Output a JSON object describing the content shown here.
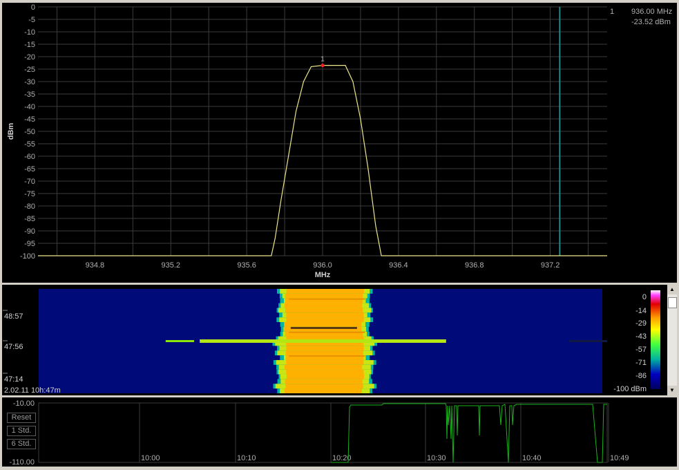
{
  "spectrum": {
    "ylabel": "dBm",
    "xlabel": "MHz",
    "y_ticks": [
      "0",
      "-5",
      "-10",
      "-15",
      "-20",
      "-25",
      "-30",
      "-35",
      "-40",
      "-45",
      "-50",
      "-55",
      "-60",
      "-65",
      "-70",
      "-75",
      "-80",
      "-85",
      "-90",
      "-95",
      "-100"
    ],
    "x_ticks": [
      "934.8",
      "935.2",
      "935.6",
      "936.0",
      "936.4",
      "936.8",
      "937.2"
    ],
    "marker": {
      "number": "1",
      "frequency": "936.00 MHz",
      "level": "-23.52 dBm"
    }
  },
  "chart_data": {
    "type": "line",
    "xlabel": "MHz",
    "ylabel": "dBm",
    "xlim": [
      934.5,
      937.5
    ],
    "ylim": [
      -100,
      0
    ],
    "grid": true,
    "series": [
      {
        "color": "#f0e68c",
        "x": [
          934.5,
          935.73,
          935.75,
          935.78,
          935.82,
          935.86,
          935.9,
          935.94,
          936.0,
          936.06,
          936.12,
          936.16,
          936.2,
          936.24,
          936.28,
          936.31,
          937.5
        ],
        "y": [
          -100,
          -100,
          -93,
          -78,
          -60,
          -42,
          -30,
          -24,
          -23.5,
          -23.5,
          -23.5,
          -30,
          -45,
          -65,
          -88,
          -100,
          -100
        ]
      }
    ],
    "vline_x": 937.25,
    "marker": {
      "x": 936.0,
      "y": -23.52,
      "label": "1"
    }
  },
  "waterfall": {
    "time_labels": [
      "48:57",
      "47:56",
      "47:14"
    ],
    "footer": "2.02.11 10h:47m",
    "scale_labels": [
      "0",
      "-14",
      "-29",
      "-43",
      "-57",
      "-71",
      "-86",
      "-100 dBm"
    ]
  },
  "history": {
    "y_top": "-10.00",
    "y_bottom": "-110.00",
    "buttons": [
      "Reset",
      "1 Std.",
      "6 Std."
    ],
    "time_labels": [
      "10:00",
      "10:10",
      "10:20",
      "10:30",
      "10:40",
      "10:49"
    ]
  },
  "colors": {
    "trace": "#f0e68c",
    "grid": "#3c3c3c",
    "vline": "#1f8a8a",
    "history": "#19b419",
    "waterfall_bg": "#000a78",
    "signal": "#ffb000"
  }
}
